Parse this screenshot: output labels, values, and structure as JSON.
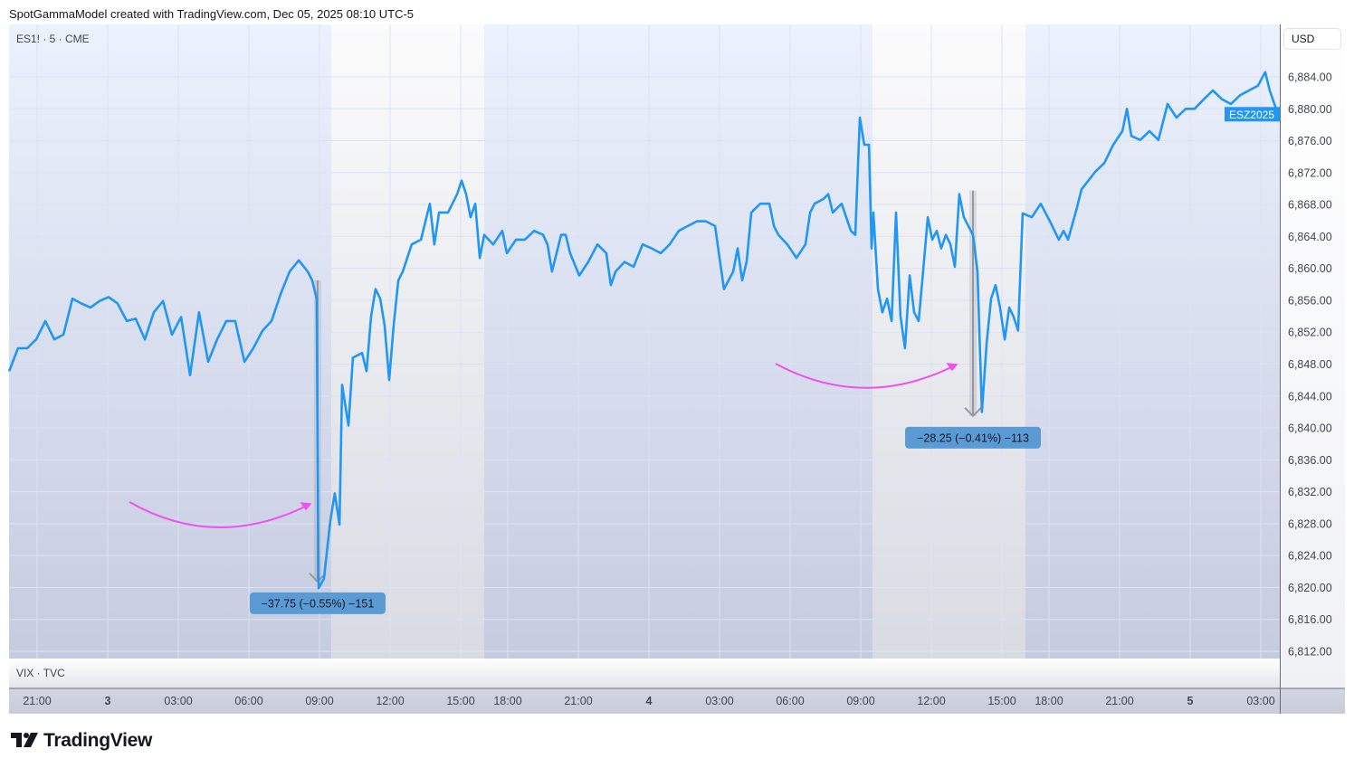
{
  "caption": "SpotGammaModel created with TradingView.com, Dec 05, 2025 08:10 UTC-5",
  "symbol_legend": "ES1! · 5 · CME",
  "currency_button": "USD",
  "lower_pane_legend": "VIX · TVC",
  "brand": "TradingView",
  "price_tag": {
    "label": "ESZ2025",
    "color": "#2196f3"
  },
  "colors": {
    "line": "#2196f3",
    "arrow": "#9598a1",
    "label_bg": "#5b9bd5",
    "curve": "#f050f0"
  },
  "measurements": [
    {
      "label": "−37.75 (−0.55%) −151",
      "from_price": 6858.5,
      "to_price": 6820.75,
      "t": 11.92
    },
    {
      "label": "−28.25 (−0.41%) −113",
      "from_price": 6869.75,
      "to_price": 6841.5,
      "t": 39.77
    }
  ],
  "chart_data": {
    "type": "line",
    "title": "ES1! · 5 · CME",
    "ylabel": "USD",
    "ylim": [
      6812,
      6884
    ],
    "y_ticks": [
      "6,884.00",
      "6,880.00",
      "6,876.00",
      "6,872.00",
      "6,868.00",
      "6,864.00",
      "6,860.00",
      "6,856.00",
      "6,852.00",
      "6,848.00",
      "6,844.00",
      "6,840.00",
      "6,836.00",
      "6,832.00",
      "6,828.00",
      "6,824.00",
      "6,820.00",
      "6,816.00",
      "6,812.00"
    ],
    "x_unit": "trading hours since Dec 2 21:00",
    "x_ticks": [
      {
        "label": "21:00",
        "t": 0
      },
      {
        "label": "3",
        "t": 3,
        "bold": true
      },
      {
        "label": "03:00",
        "t": 6
      },
      {
        "label": "06:00",
        "t": 9
      },
      {
        "label": "09:00",
        "t": 12
      },
      {
        "label": "12:00",
        "t": 15
      },
      {
        "label": "15:00",
        "t": 18
      },
      {
        "label": "18:00",
        "t": 20
      },
      {
        "label": "21:00",
        "t": 23
      },
      {
        "label": "4",
        "t": 26,
        "bold": true
      },
      {
        "label": "03:00",
        "t": 29
      },
      {
        "label": "06:00",
        "t": 32
      },
      {
        "label": "09:00",
        "t": 35
      },
      {
        "label": "12:00",
        "t": 38
      },
      {
        "label": "15:00",
        "t": 41
      },
      {
        "label": "18:00",
        "t": 43
      },
      {
        "label": "21:00",
        "t": 46
      },
      {
        "label": "5",
        "t": 49,
        "bold": true
      },
      {
        "label": "03:00",
        "t": 52
      }
    ],
    "rth_sessions": [
      [
        12.5,
        19.0
      ],
      [
        35.5,
        42.0
      ]
    ],
    "series": [
      {
        "name": "ESZ2025",
        "points": [
          [
            -1.19,
            6847.1
          ],
          [
            -0.81,
            6850.0
          ],
          [
            -0.42,
            6850.0
          ],
          [
            -0.04,
            6851.1
          ],
          [
            0.35,
            6853.4
          ],
          [
            0.73,
            6851.1
          ],
          [
            1.12,
            6851.7
          ],
          [
            1.5,
            6856.2
          ],
          [
            1.88,
            6855.6
          ],
          [
            2.27,
            6855.1
          ],
          [
            2.65,
            6855.9
          ],
          [
            3.04,
            6856.4
          ],
          [
            3.42,
            6855.6
          ],
          [
            3.81,
            6853.4
          ],
          [
            4.19,
            6853.7
          ],
          [
            4.58,
            6851.1
          ],
          [
            4.96,
            6854.5
          ],
          [
            5.35,
            6855.9
          ],
          [
            5.73,
            6851.7
          ],
          [
            6.12,
            6853.9
          ],
          [
            6.5,
            6846.6
          ],
          [
            6.88,
            6854.5
          ],
          [
            7.27,
            6848.3
          ],
          [
            7.65,
            6851.1
          ],
          [
            8.04,
            6853.4
          ],
          [
            8.42,
            6853.4
          ],
          [
            8.81,
            6848.3
          ],
          [
            9.19,
            6850.0
          ],
          [
            9.58,
            6852.2
          ],
          [
            9.96,
            6853.4
          ],
          [
            10.35,
            6856.8
          ],
          [
            10.73,
            6859.6
          ],
          [
            11.12,
            6861.0
          ],
          [
            11.5,
            6859.6
          ],
          [
            11.69,
            6858.5
          ],
          [
            11.88,
            6856.2
          ],
          [
            11.96,
            6819.9
          ],
          [
            12.19,
            6821.1
          ],
          [
            12.46,
            6828.4
          ],
          [
            12.65,
            6831.8
          ],
          [
            12.85,
            6827.9
          ],
          [
            12.96,
            6845.4
          ],
          [
            13.23,
            6840.3
          ],
          [
            13.42,
            6848.8
          ],
          [
            13.81,
            6849.4
          ],
          [
            14.0,
            6847.1
          ],
          [
            14.19,
            6853.9
          ],
          [
            14.38,
            6857.4
          ],
          [
            14.58,
            6856.2
          ],
          [
            14.77,
            6852.8
          ],
          [
            14.96,
            6846.0
          ],
          [
            15.15,
            6852.8
          ],
          [
            15.35,
            6858.5
          ],
          [
            15.54,
            6859.6
          ],
          [
            15.92,
            6863.0
          ],
          [
            16.31,
            6863.6
          ],
          [
            16.69,
            6868.1
          ],
          [
            16.88,
            6863.0
          ],
          [
            17.08,
            6867.0
          ],
          [
            17.46,
            6867.0
          ],
          [
            17.85,
            6869.3
          ],
          [
            18.04,
            6871.0
          ],
          [
            18.23,
            6869.3
          ],
          [
            18.42,
            6866.4
          ],
          [
            18.62,
            6868.1
          ],
          [
            18.81,
            6861.3
          ],
          [
            19.0,
            6864.2
          ],
          [
            19.38,
            6863.0
          ],
          [
            19.77,
            6864.7
          ],
          [
            19.96,
            6861.9
          ],
          [
            20.35,
            6863.6
          ],
          [
            20.73,
            6863.6
          ],
          [
            21.12,
            6864.7
          ],
          [
            21.5,
            6864.2
          ],
          [
            21.69,
            6863.0
          ],
          [
            21.88,
            6859.6
          ],
          [
            22.27,
            6864.2
          ],
          [
            22.46,
            6864.2
          ],
          [
            22.65,
            6861.9
          ],
          [
            23.04,
            6859.1
          ],
          [
            23.42,
            6860.8
          ],
          [
            23.81,
            6863.0
          ],
          [
            24.19,
            6861.9
          ],
          [
            24.38,
            6857.9
          ],
          [
            24.58,
            6859.6
          ],
          [
            24.96,
            6860.8
          ],
          [
            25.35,
            6860.2
          ],
          [
            25.73,
            6863.0
          ],
          [
            26.12,
            6862.5
          ],
          [
            26.5,
            6861.9
          ],
          [
            26.88,
            6863.0
          ],
          [
            27.27,
            6864.7
          ],
          [
            27.65,
            6865.3
          ],
          [
            28.04,
            6865.9
          ],
          [
            28.42,
            6865.9
          ],
          [
            28.81,
            6865.3
          ],
          [
            29.0,
            6861.3
          ],
          [
            29.19,
            6857.4
          ],
          [
            29.58,
            6859.6
          ],
          [
            29.77,
            6862.5
          ],
          [
            29.96,
            6858.5
          ],
          [
            30.15,
            6860.8
          ],
          [
            30.35,
            6867.0
          ],
          [
            30.73,
            6868.1
          ],
          [
            31.12,
            6868.1
          ],
          [
            31.31,
            6865.3
          ],
          [
            31.5,
            6864.2
          ],
          [
            31.88,
            6863.0
          ],
          [
            32.27,
            6861.3
          ],
          [
            32.65,
            6863.0
          ],
          [
            32.85,
            6867.0
          ],
          [
            33.04,
            6868.1
          ],
          [
            33.42,
            6868.7
          ],
          [
            33.62,
            6869.3
          ],
          [
            33.81,
            6867.0
          ],
          [
            34.19,
            6868.1
          ],
          [
            34.58,
            6864.7
          ],
          [
            34.77,
            6864.2
          ],
          [
            34.96,
            6878.9
          ],
          [
            35.15,
            6875.5
          ],
          [
            35.35,
            6875.5
          ],
          [
            35.46,
            6862.5
          ],
          [
            35.54,
            6867.0
          ],
          [
            35.73,
            6857.4
          ],
          [
            35.92,
            6854.5
          ],
          [
            36.12,
            6856.2
          ],
          [
            36.31,
            6853.4
          ],
          [
            36.5,
            6867.0
          ],
          [
            36.69,
            6854.0
          ],
          [
            36.88,
            6850.0
          ],
          [
            37.08,
            6859.1
          ],
          [
            37.27,
            6854.5
          ],
          [
            37.46,
            6853.4
          ],
          [
            37.65,
            6859.6
          ],
          [
            37.85,
            6866.4
          ],
          [
            38.04,
            6863.6
          ],
          [
            38.23,
            6864.7
          ],
          [
            38.42,
            6862.5
          ],
          [
            38.62,
            6864.2
          ],
          [
            38.81,
            6863.0
          ],
          [
            39.0,
            6860.2
          ],
          [
            39.19,
            6869.3
          ],
          [
            39.38,
            6866.4
          ],
          [
            39.77,
            6864.2
          ],
          [
            39.96,
            6859.6
          ],
          [
            40.15,
            6842.0
          ],
          [
            40.35,
            6850.6
          ],
          [
            40.54,
            6856.2
          ],
          [
            40.73,
            6857.9
          ],
          [
            40.92,
            6855.1
          ],
          [
            41.12,
            6851.1
          ],
          [
            41.31,
            6855.1
          ],
          [
            41.5,
            6853.9
          ],
          [
            41.69,
            6852.2
          ],
          [
            41.88,
            6866.9
          ],
          [
            42.27,
            6866.4
          ],
          [
            42.65,
            6868.1
          ],
          [
            43.04,
            6865.9
          ],
          [
            43.42,
            6863.6
          ],
          [
            43.62,
            6864.7
          ],
          [
            43.81,
            6863.6
          ],
          [
            44.19,
            6867.6
          ],
          [
            44.38,
            6869.9
          ],
          [
            44.96,
            6872.1
          ],
          [
            45.35,
            6873.2
          ],
          [
            45.73,
            6875.5
          ],
          [
            46.12,
            6877.2
          ],
          [
            46.31,
            6880.0
          ],
          [
            46.5,
            6876.6
          ],
          [
            46.88,
            6876.1
          ],
          [
            47.27,
            6877.2
          ],
          [
            47.65,
            6876.1
          ],
          [
            48.04,
            6880.6
          ],
          [
            48.42,
            6878.9
          ],
          [
            48.81,
            6880.0
          ],
          [
            49.19,
            6880.0
          ],
          [
            49.58,
            6881.2
          ],
          [
            49.96,
            6882.3
          ],
          [
            50.35,
            6881.2
          ],
          [
            50.73,
            6880.6
          ],
          [
            51.12,
            6881.7
          ],
          [
            51.5,
            6882.3
          ],
          [
            51.88,
            6882.9
          ],
          [
            52.19,
            6884.6
          ],
          [
            52.38,
            6882.3
          ],
          [
            52.65,
            6880.0
          ]
        ]
      }
    ]
  }
}
